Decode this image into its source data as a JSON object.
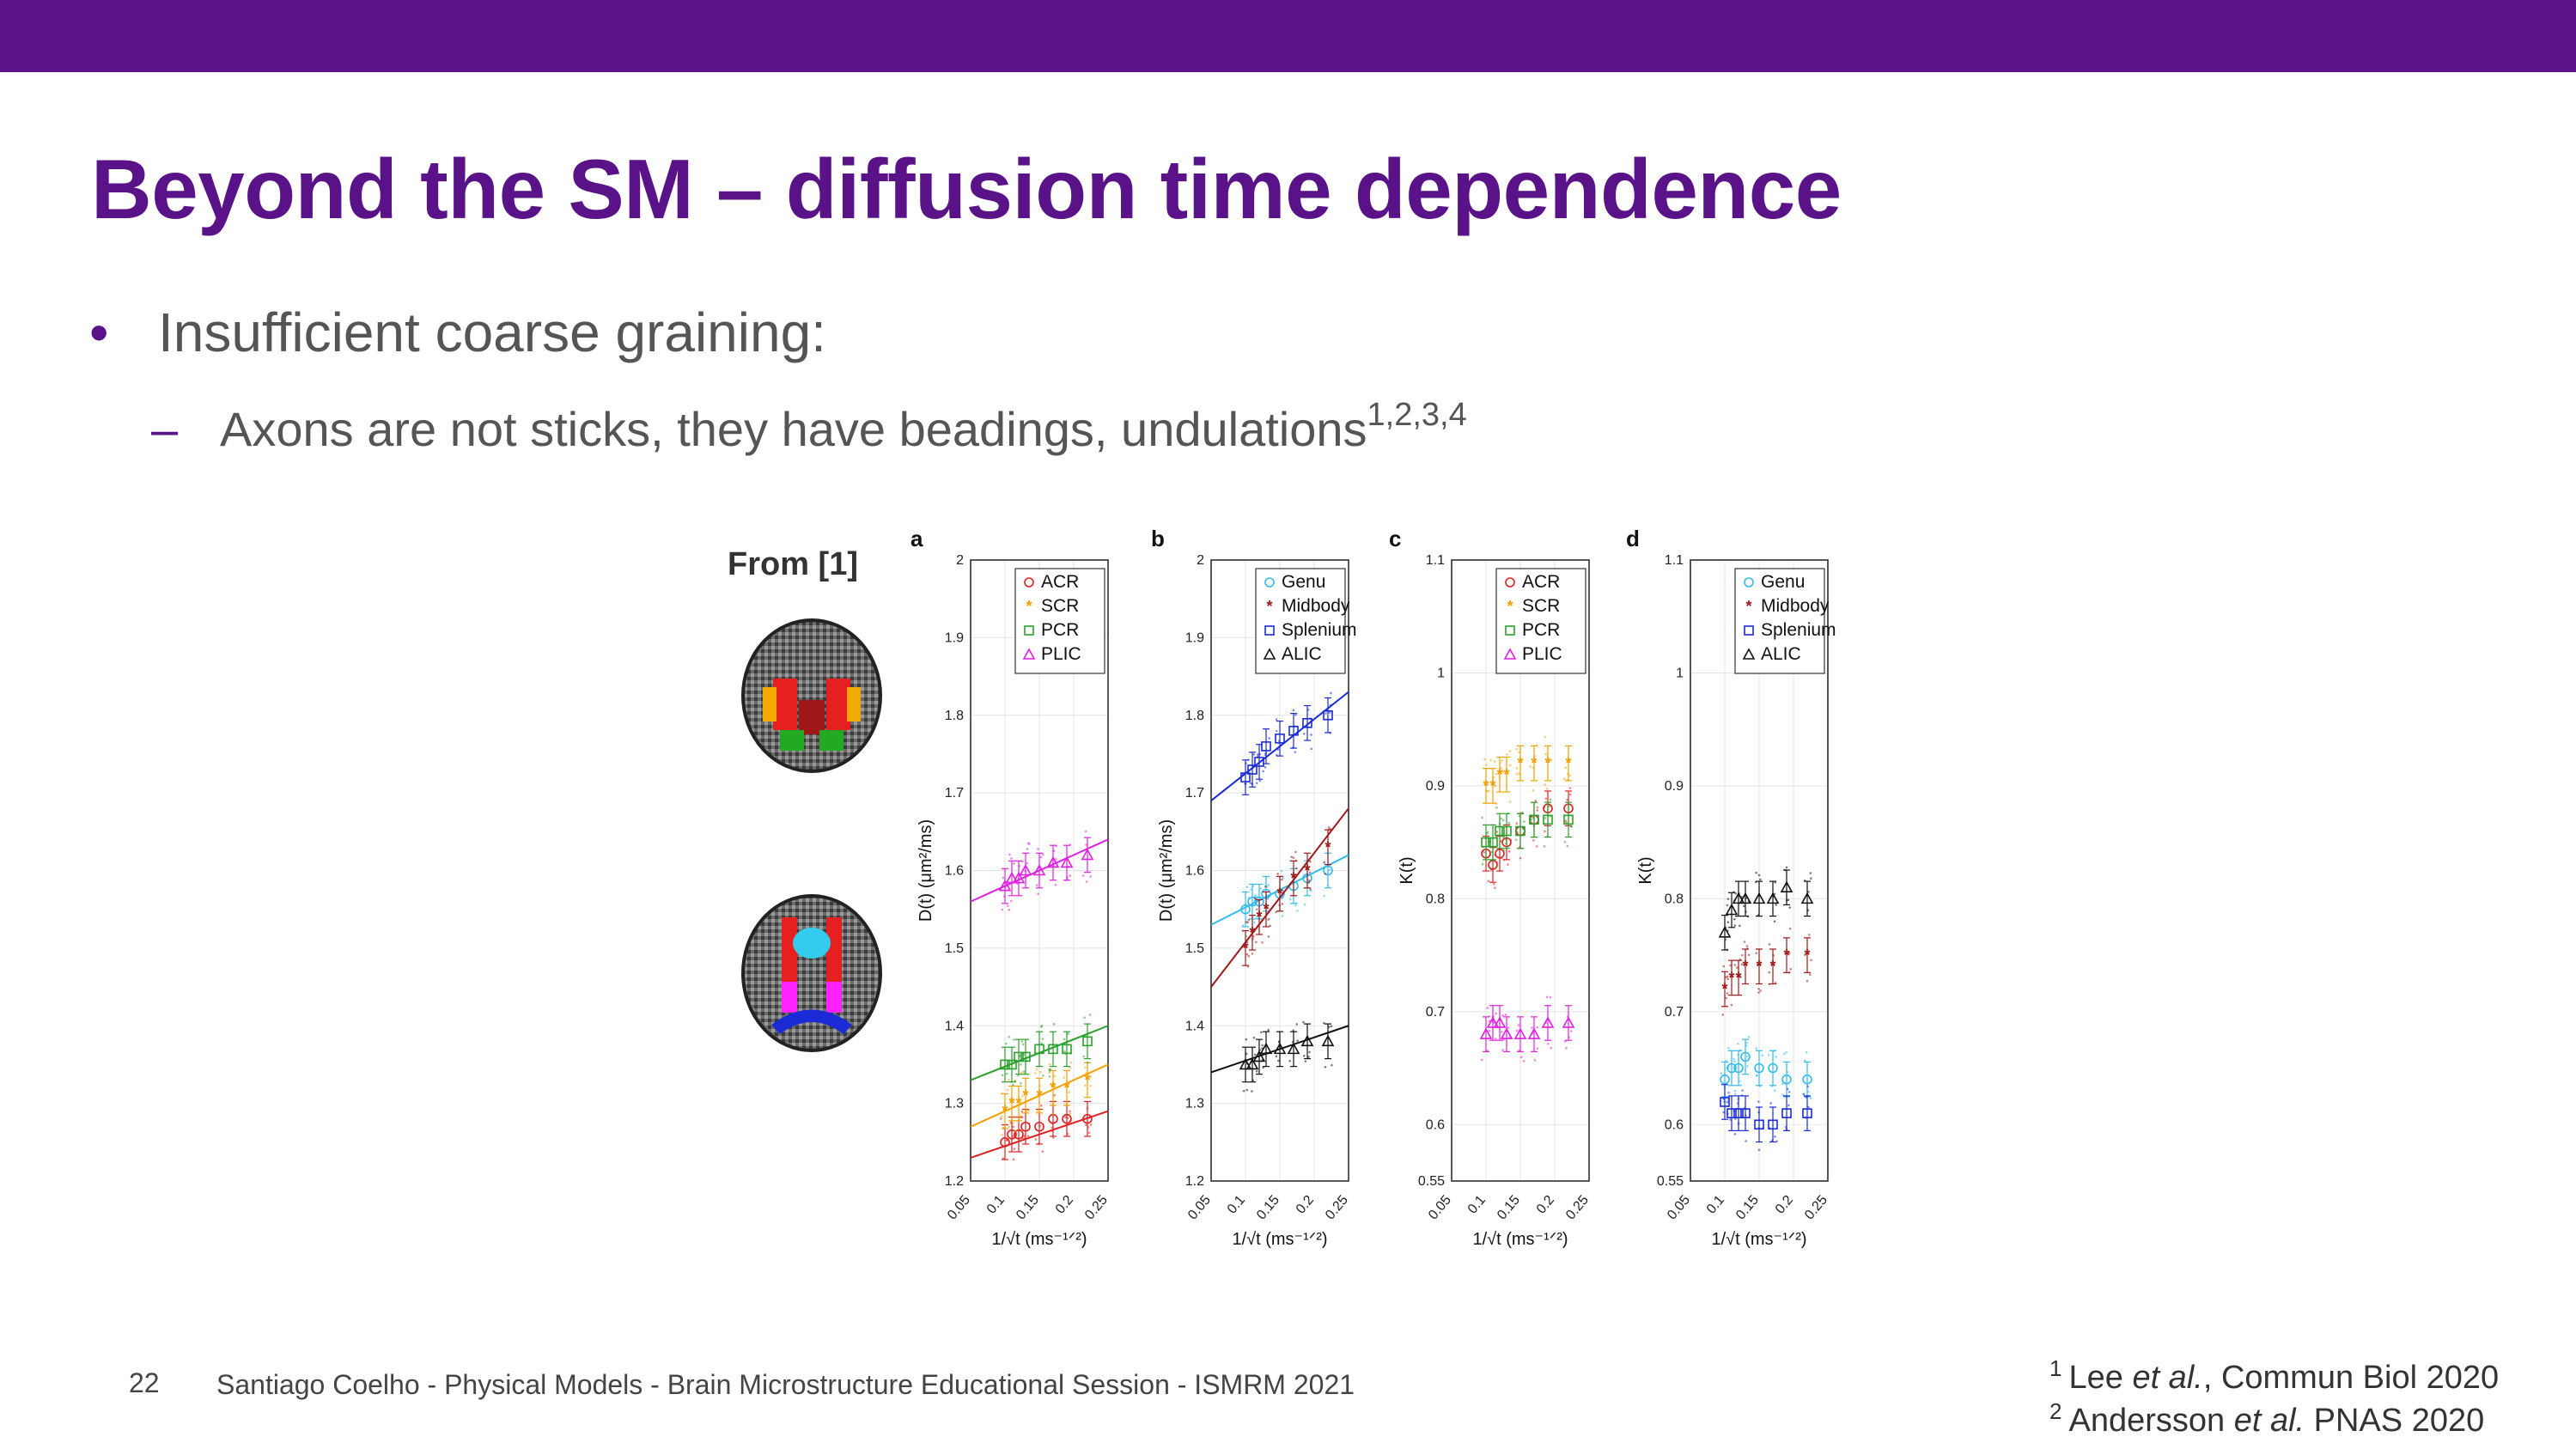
{
  "slide": {
    "title": "Beyond the SM – diffusion time dependence",
    "bullet_marker": "•",
    "bullet1": "Insufficient coarse graining:",
    "sub_marker": "–",
    "bullet2": "Axons are not sticks, they have beadings, undulations",
    "bullet2_sup": "1,2,3,4",
    "from_label": "From [1]",
    "page_number": "22",
    "footer": "Santiago Coelho - Physical Models - Brain Microstructure Educational Session - ISMRM 2021",
    "refs": [
      {
        "sup": "1",
        "pre": "Lee ",
        "em": "et al.",
        "post": ", Commun Biol 2020"
      },
      {
        "sup": "2",
        "pre": "Andersson ",
        "em": "et al.",
        "post": " PNAS 2020"
      }
    ],
    "colors": {
      "accent": "#5a1289",
      "text": "#555555"
    }
  },
  "chart_data": [
    {
      "panel": "a",
      "type": "scatter",
      "xlabel": "1/√t (ms⁻¹ᐟ²)",
      "ylabel": "D(t) (μm²/ms)",
      "xlim": [
        0.05,
        0.25
      ],
      "ylim": [
        1.2,
        2.0
      ],
      "xticks": [
        "0.05",
        "0.1",
        "0.15",
        "0.2",
        "0.25"
      ],
      "yticks": [
        "1.2",
        "1.3",
        "1.4",
        "1.5",
        "1.6",
        "1.7",
        "1.8",
        "1.9",
        "2"
      ],
      "legend": "top-right",
      "x": [
        0.1,
        0.11,
        0.12,
        0.13,
        0.15,
        0.17,
        0.19,
        0.22
      ],
      "series": [
        {
          "name": "ACR",
          "marker": "o",
          "color": "#e02020",
          "values": [
            1.25,
            1.26,
            1.26,
            1.27,
            1.27,
            1.28,
            1.28,
            1.28
          ],
          "fit": [
            [
              0.05,
              1.23
            ],
            [
              0.25,
              1.29
            ]
          ]
        },
        {
          "name": "SCR",
          "marker": "*",
          "color": "#f5a000",
          "values": [
            1.29,
            1.3,
            1.3,
            1.31,
            1.31,
            1.32,
            1.32,
            1.33
          ],
          "fit": [
            [
              0.05,
              1.27
            ],
            [
              0.25,
              1.35
            ]
          ]
        },
        {
          "name": "PCR",
          "marker": "s",
          "color": "#2ca02c",
          "values": [
            1.35,
            1.35,
            1.36,
            1.36,
            1.37,
            1.37,
            1.37,
            1.38
          ],
          "fit": [
            [
              0.05,
              1.33
            ],
            [
              0.25,
              1.4
            ]
          ]
        },
        {
          "name": "PLIC",
          "marker": "^",
          "color": "#e020e0",
          "values": [
            1.58,
            1.59,
            1.59,
            1.6,
            1.6,
            1.61,
            1.61,
            1.62
          ],
          "fit": [
            [
              0.05,
              1.56
            ],
            [
              0.25,
              1.64
            ]
          ]
        }
      ]
    },
    {
      "panel": "b",
      "type": "scatter",
      "xlabel": "1/√t (ms⁻¹ᐟ²)",
      "ylabel": "D(t) (μm²/ms)",
      "xlim": [
        0.05,
        0.25
      ],
      "ylim": [
        1.2,
        2.0
      ],
      "xticks": [
        "0.05",
        "0.1",
        "0.15",
        "0.2",
        "0.25"
      ],
      "yticks": [
        "1.2",
        "1.3",
        "1.4",
        "1.5",
        "1.6",
        "1.7",
        "1.8",
        "1.9",
        "2"
      ],
      "legend": "top-right",
      "x": [
        0.1,
        0.11,
        0.12,
        0.13,
        0.15,
        0.17,
        0.19,
        0.22
      ],
      "series": [
        {
          "name": "Genu",
          "marker": "o",
          "color": "#33bbee",
          "values": [
            1.55,
            1.56,
            1.56,
            1.57,
            1.57,
            1.58,
            1.59,
            1.6
          ],
          "fit": [
            [
              0.05,
              1.53
            ],
            [
              0.25,
              1.62
            ]
          ]
        },
        {
          "name": "Midbody",
          "marker": "*",
          "color": "#a01818",
          "values": [
            1.5,
            1.52,
            1.54,
            1.55,
            1.57,
            1.59,
            1.6,
            1.63
          ],
          "fit": [
            [
              0.05,
              1.45
            ],
            [
              0.25,
              1.68
            ]
          ]
        },
        {
          "name": "Splenium",
          "marker": "s",
          "color": "#1a2bd6",
          "values": [
            1.72,
            1.73,
            1.74,
            1.76,
            1.77,
            1.78,
            1.79,
            1.8
          ],
          "fit": [
            [
              0.05,
              1.69
            ],
            [
              0.25,
              1.83
            ]
          ]
        },
        {
          "name": "ALIC",
          "marker": "^",
          "color": "#111111",
          "values": [
            1.35,
            1.35,
            1.36,
            1.37,
            1.37,
            1.37,
            1.38,
            1.38
          ],
          "fit": [
            [
              0.05,
              1.34
            ],
            [
              0.25,
              1.4
            ]
          ]
        }
      ]
    },
    {
      "panel": "c",
      "type": "scatter",
      "xlabel": "1/√t (ms⁻¹ᐟ²)",
      "ylabel": "K(t)",
      "xlim": [
        0.05,
        0.25
      ],
      "ylim": [
        0.55,
        1.1
      ],
      "xticks": [
        "0.05",
        "0.1",
        "0.15",
        "0.2",
        "0.25"
      ],
      "yticks": [
        "0.55",
        "0.6",
        "0.7",
        "0.8",
        "0.9",
        "1",
        "1.1"
      ],
      "legend": "top-right",
      "x": [
        0.1,
        0.11,
        0.12,
        0.13,
        0.15,
        0.17,
        0.19,
        0.22
      ],
      "series": [
        {
          "name": "ACR",
          "marker": "o",
          "color": "#e02020",
          "values": [
            0.84,
            0.83,
            0.84,
            0.85,
            0.86,
            0.87,
            0.88,
            0.88
          ]
        },
        {
          "name": "SCR",
          "marker": "*",
          "color": "#f5a000",
          "values": [
            0.9,
            0.9,
            0.91,
            0.91,
            0.92,
            0.92,
            0.92,
            0.92
          ]
        },
        {
          "name": "PCR",
          "marker": "s",
          "color": "#2ca02c",
          "values": [
            0.85,
            0.85,
            0.86,
            0.86,
            0.86,
            0.87,
            0.87,
            0.87
          ]
        },
        {
          "name": "PLIC",
          "marker": "^",
          "color": "#e020e0",
          "values": [
            0.68,
            0.69,
            0.69,
            0.68,
            0.68,
            0.68,
            0.69,
            0.69
          ]
        }
      ]
    },
    {
      "panel": "d",
      "type": "scatter",
      "xlabel": "1/√t (ms⁻¹ᐟ²)",
      "ylabel": "K(t)",
      "xlim": [
        0.05,
        0.25
      ],
      "ylim": [
        0.55,
        1.1
      ],
      "xticks": [
        "0.05",
        "0.1",
        "0.15",
        "0.2",
        "0.25"
      ],
      "yticks": [
        "0.55",
        "0.6",
        "0.7",
        "0.8",
        "0.9",
        "1",
        "1.1"
      ],
      "legend": "top-right",
      "x": [
        0.1,
        0.11,
        0.12,
        0.13,
        0.15,
        0.17,
        0.19,
        0.22
      ],
      "series": [
        {
          "name": "Genu",
          "marker": "o",
          "color": "#33bbee",
          "values": [
            0.64,
            0.65,
            0.65,
            0.66,
            0.65,
            0.65,
            0.64,
            0.64
          ]
        },
        {
          "name": "Midbody",
          "marker": "*",
          "color": "#a01818",
          "values": [
            0.72,
            0.73,
            0.73,
            0.74,
            0.74,
            0.74,
            0.75,
            0.75
          ]
        },
        {
          "name": "Splenium",
          "marker": "s",
          "color": "#1a2bd6",
          "values": [
            0.62,
            0.61,
            0.61,
            0.61,
            0.6,
            0.6,
            0.61,
            0.61
          ]
        },
        {
          "name": "ALIC",
          "marker": "^",
          "color": "#111111",
          "values": [
            0.77,
            0.79,
            0.8,
            0.8,
            0.8,
            0.8,
            0.81,
            0.8
          ]
        }
      ]
    }
  ]
}
